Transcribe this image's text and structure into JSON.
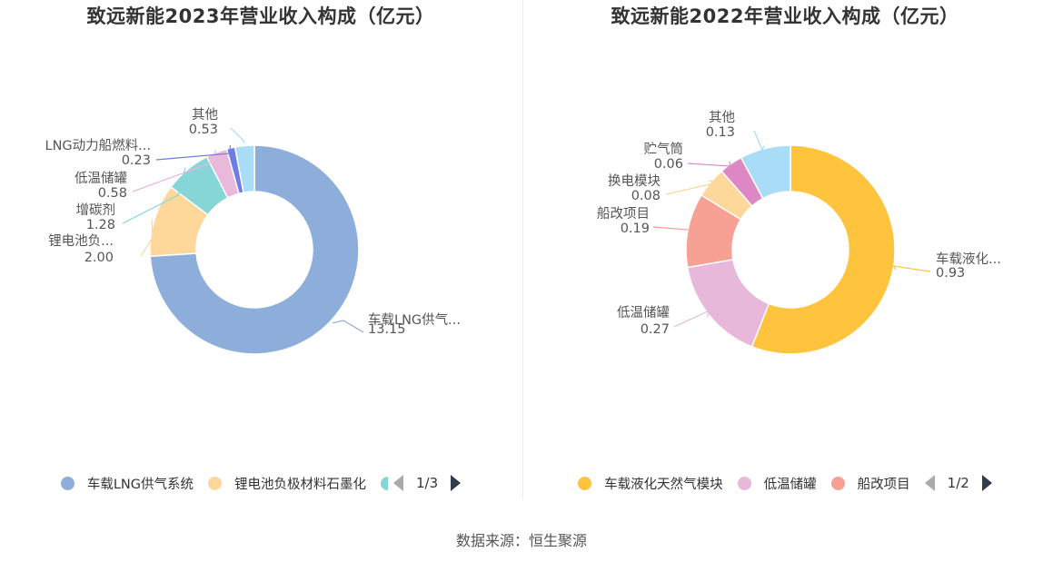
{
  "chart_data": [
    {
      "type": "pie",
      "title": "致远新能2023年营业收入构成（亿元）",
      "labels": [
        "车载LNG供气...",
        "锂电池负...",
        "增碳剂",
        "低温储罐",
        "LNG动力船燃料...",
        "其他"
      ],
      "values": [
        13.15,
        2.0,
        1.28,
        0.58,
        0.23,
        0.53
      ],
      "value_labels": [
        "13.15",
        "2.00",
        "1.28",
        "0.58",
        "0.23",
        "0.53"
      ],
      "colors": [
        "#8daddb",
        "#fdd89a",
        "#86d5d7",
        "#e9b8da",
        "#6c7ee6",
        "#a8dcf7"
      ],
      "legend": {
        "items": [
          {
            "label": "车载LNG供气系统",
            "color": "#8daddb"
          },
          {
            "label": "锂电池负极材料石墨化",
            "color": "#fdd89a"
          }
        ],
        "partial_color": "#86d5d7",
        "page": "1/3",
        "position": "bottom"
      }
    },
    {
      "type": "pie",
      "title": "致远新能2022年营业收入构成（亿元）",
      "labels": [
        "车载液化...",
        "低温储罐",
        "船改项目",
        "换电模块",
        "贮气筒",
        "其他"
      ],
      "values": [
        0.93,
        0.27,
        0.19,
        0.08,
        0.06,
        0.13
      ],
      "value_labels": [
        "0.93",
        "0.27",
        "0.19",
        "0.08",
        "0.06",
        "0.13"
      ],
      "colors": [
        "#fec43d",
        "#e8b8da",
        "#f7a094",
        "#fdd89a",
        "#dd88c5",
        "#a8dcf7"
      ],
      "legend": {
        "items": [
          {
            "label": "车载液化天然气模块",
            "color": "#fec43d"
          },
          {
            "label": "低温储罐",
            "color": "#e8b8da"
          },
          {
            "label": "船改项目",
            "color": "#f7a094"
          }
        ],
        "page": "1/2",
        "position": "bottom"
      }
    }
  ],
  "source": "数据来源：恒生聚源"
}
